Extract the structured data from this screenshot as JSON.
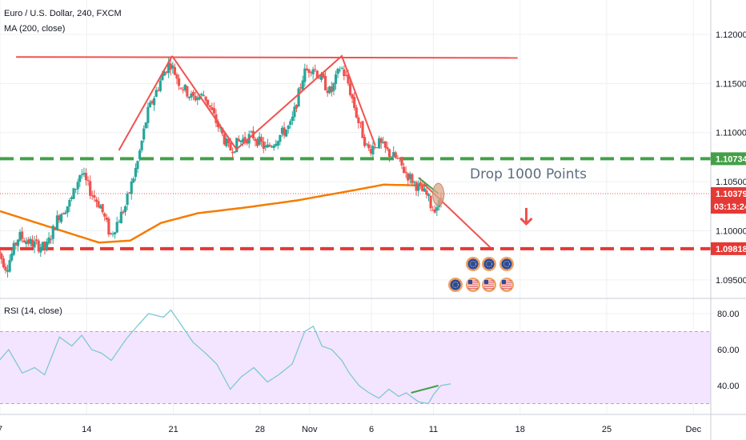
{
  "header": {
    "symbol_line": "Euro / U.S. Dollar, 240, FXCM",
    "ma_line": "MA (200, close)",
    "rsi_line": "RSI (14, close)"
  },
  "colors": {
    "up": "#26a69a",
    "down": "#ef5350",
    "ma": "#f57c00",
    "green_level": "#43a047",
    "red_level": "#e53935",
    "rsi_line": "#7ec8d4",
    "rsi_band": "#f3e5ff",
    "price_tag": "#e53935",
    "annotation": "#5d6d7e"
  },
  "chart_data": [
    {
      "type": "candlestick",
      "title": "Euro / U.S. Dollar, 240, FXCM",
      "x_tick_labels": [
        "7",
        "14",
        "21",
        "28",
        "Nov",
        "6",
        "11",
        "18",
        "25",
        "Dec"
      ],
      "y_tick_labels": [
        "1.09500",
        "1.10000",
        "1.10500",
        "1.11000",
        "1.11500",
        "1.12000"
      ],
      "ylim": [
        1.0932,
        1.1235
      ],
      "xlim_days": [
        0,
        57.4
      ],
      "tick_days": [
        0,
        7,
        14,
        21,
        25,
        30,
        35,
        42,
        49,
        56
      ],
      "last_price": "1.10379",
      "countdown": "03:13:24",
      "levels": [
        {
          "value": 1.10734,
          "label": "1.10734",
          "color": "#43a047",
          "style": "dashed"
        },
        {
          "value": 1.09818,
          "label": "1.09818",
          "color": "#e53935",
          "style": "dashed"
        }
      ],
      "anchors": [
        [
          -0.3,
          1.0985
        ],
        [
          0.6,
          1.0962
        ],
        [
          1.6,
          1.0995
        ],
        [
          2.5,
          1.0988
        ],
        [
          3.8,
          1.0982
        ],
        [
          4.8,
          1.1015
        ],
        [
          5.8,
          1.103
        ],
        [
          6.6,
          1.106
        ],
        [
          7.4,
          1.104
        ],
        [
          8.2,
          1.1025
        ],
        [
          9.0,
          1.0995
        ],
        [
          10.2,
          1.1025
        ],
        [
          11.2,
          1.107
        ],
        [
          12.0,
          1.112
        ],
        [
          13.2,
          1.1158
        ],
        [
          13.8,
          1.1172
        ],
        [
          14.6,
          1.115
        ],
        [
          15.6,
          1.1135
        ],
        [
          16.6,
          1.1138
        ],
        [
          17.5,
          1.1112
        ],
        [
          18.6,
          1.1082
        ],
        [
          19.5,
          1.1092
        ],
        [
          20.5,
          1.1097
        ],
        [
          21.6,
          1.1083
        ],
        [
          22.5,
          1.1095
        ],
        [
          23.6,
          1.1108
        ],
        [
          24.6,
          1.116
        ],
        [
          25.3,
          1.1168
        ],
        [
          26.0,
          1.1155
        ],
        [
          26.8,
          1.114
        ],
        [
          27.6,
          1.1168
        ],
        [
          28.2,
          1.115
        ],
        [
          29.0,
          1.1112
        ],
        [
          29.8,
          1.1082
        ],
        [
          30.6,
          1.109
        ],
        [
          31.4,
          1.108
        ],
        [
          32.2,
          1.1072
        ],
        [
          32.8,
          1.106
        ],
        [
          33.8,
          1.1045
        ],
        [
          34.6,
          1.1035
        ],
        [
          35.0,
          1.1022
        ],
        [
          35.6,
          1.1028
        ]
      ],
      "ma": [
        [
          0,
          1.102
        ],
        [
          4,
          1.1004
        ],
        [
          8,
          1.0988
        ],
        [
          10.5,
          1.099
        ],
        [
          13,
          1.1008
        ],
        [
          16,
          1.1018
        ],
        [
          20,
          1.1024
        ],
        [
          24,
          1.1031
        ],
        [
          28,
          1.104
        ],
        [
          31,
          1.1047
        ],
        [
          34.6,
          1.1046
        ]
      ],
      "annotations": {
        "label": "Drop 1000 Points",
        "top_line": {
          "from": [
            1.3,
            1.1177
          ],
          "to": [
            41.8,
            1.1176
          ]
        },
        "up_leg": [
          [
            9.6,
            1.1082
          ],
          [
            13.9,
            1.1178
          ]
        ],
        "zigzag": [
          [
            13.9,
            1.1178
          ],
          [
            19.1,
            1.1083
          ],
          [
            27.6,
            1.1178
          ],
          [
            30.3,
            1.1087
          ]
        ],
        "projection": {
          "from": [
            34.2,
            1.1048
          ],
          "to": [
            39.6,
            1.0983
          ]
        },
        "green_tick": {
          "from": [
            33.8,
            1.1054
          ],
          "to": [
            35.4,
            1.1038
          ]
        },
        "arrow_at": [
          42.5,
          1.1007
        ]
      }
    },
    {
      "type": "line",
      "title": "RSI (14, close)",
      "y_tick_labels": [
        "40.00",
        "60.00",
        "80.00"
      ],
      "ylim": [
        24,
        88
      ],
      "band": [
        30,
        70
      ],
      "series": [
        {
          "values": [
            [
              -0.3,
              52
            ],
            [
              0.7,
              60
            ],
            [
              1.8,
              47
            ],
            [
              2.8,
              50
            ],
            [
              3.6,
              46
            ],
            [
              4.8,
              67
            ],
            [
              5.8,
              62
            ],
            [
              6.6,
              68
            ],
            [
              7.4,
              60
            ],
            [
              8.2,
              58
            ],
            [
              9.0,
              54
            ],
            [
              10.2,
              66
            ],
            [
              11.2,
              74
            ],
            [
              12.0,
              80
            ],
            [
              13.2,
              78
            ],
            [
              13.8,
              82
            ],
            [
              14.6,
              74
            ],
            [
              15.6,
              64
            ],
            [
              16.6,
              58
            ],
            [
              17.5,
              52
            ],
            [
              18.6,
              38
            ],
            [
              19.5,
              45
            ],
            [
              20.5,
              50
            ],
            [
              21.6,
              42
            ],
            [
              22.5,
              46
            ],
            [
              23.6,
              52
            ],
            [
              24.6,
              70
            ],
            [
              25.3,
              73
            ],
            [
              26.0,
              62
            ],
            [
              26.8,
              60
            ],
            [
              27.6,
              54
            ],
            [
              28.2,
              47
            ],
            [
              29.0,
              40
            ],
            [
              29.8,
              36
            ],
            [
              30.6,
              33
            ],
            [
              31.4,
              38
            ],
            [
              32.2,
              34
            ],
            [
              32.8,
              36
            ],
            [
              33.8,
              31
            ],
            [
              34.6,
              30
            ],
            [
              35.0,
              35
            ],
            [
              35.6,
              40
            ],
            [
              36.4,
              41
            ]
          ]
        }
      ],
      "divergence_line": {
        "from": [
          33.2,
          36
        ],
        "to": [
          35.4,
          40
        ]
      }
    }
  ]
}
